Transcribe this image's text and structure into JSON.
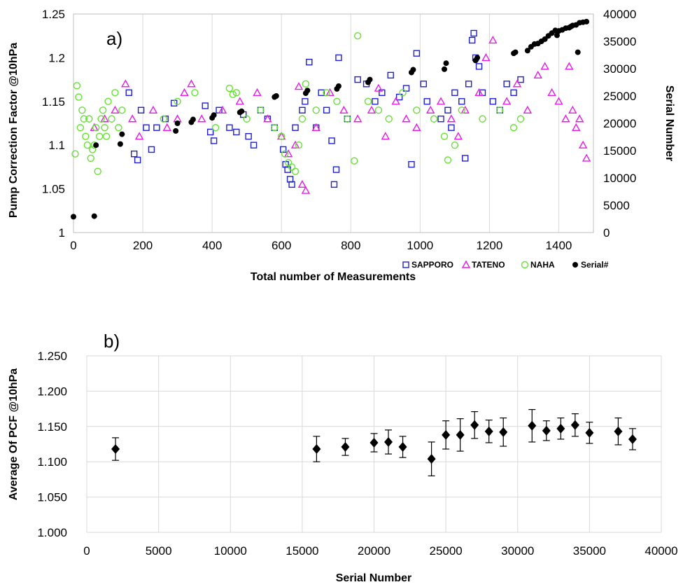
{
  "chart_data": [
    {
      "type": "scatter",
      "panel_label": "a)",
      "xlabel": "Total number of Measurements",
      "ylabel": "Pump Correction Factor @10hPa",
      "y2label": "Serial Number",
      "xlim": [
        0,
        1500
      ],
      "ylim": [
        1.0,
        1.25
      ],
      "y2lim": [
        0,
        40000
      ],
      "x_ticks": [
        0,
        200,
        400,
        600,
        800,
        1000,
        1200,
        1400
      ],
      "y_ticks": [
        "1",
        "1.05",
        "1.1",
        "1.15",
        "1.2",
        "1.25"
      ],
      "y_tick_values": [
        1.0,
        1.05,
        1.1,
        1.15,
        1.2,
        1.25
      ],
      "y2_ticks": [
        0,
        5000,
        10000,
        15000,
        20000,
        25000,
        30000,
        35000,
        40000
      ],
      "grid": "vertical",
      "legend_position": "bottom-right",
      "colors": {
        "SAPPORO": "#1f1fd6",
        "TATENO": "#e619e6",
        "NAHA": "#66e033",
        "Serial#": "#000000"
      },
      "series": [
        {
          "name": "SAPPORO",
          "marker": "square",
          "axis": "left",
          "x": [
            160,
            175,
            185,
            195,
            210,
            225,
            240,
            265,
            290,
            380,
            395,
            405,
            420,
            450,
            470,
            490,
            505,
            520,
            540,
            560,
            580,
            605,
            612,
            618,
            625,
            630,
            640,
            660,
            668,
            680,
            700,
            715,
            730,
            745,
            752,
            758,
            765,
            790,
            820,
            845,
            870,
            890,
            915,
            940,
            960,
            975,
            990,
            1010,
            1020,
            1060,
            1080,
            1090,
            1100,
            1120,
            1130,
            1140,
            1150,
            1155,
            1160,
            1170,
            1180,
            1210,
            1230,
            1250,
            1270,
            1290
          ],
          "y": [
            1.16,
            1.09,
            1.083,
            1.14,
            1.12,
            1.095,
            1.12,
            1.13,
            1.148,
            1.145,
            1.115,
            1.105,
            1.14,
            1.12,
            1.115,
            1.135,
            1.11,
            1.1,
            1.14,
            1.13,
            1.12,
            1.095,
            1.078,
            1.072,
            1.061,
            1.055,
            1.12,
            1.14,
            1.15,
            1.195,
            1.12,
            1.16,
            1.14,
            1.105,
            1.055,
            1.072,
            1.2,
            1.13,
            1.175,
            1.17,
            1.15,
            1.16,
            1.18,
            1.155,
            1.165,
            1.078,
            1.205,
            1.17,
            1.15,
            1.13,
            1.14,
            1.12,
            1.16,
            1.15,
            1.085,
            1.17,
            1.22,
            1.228,
            1.2,
            1.19,
            1.16,
            1.15,
            1.14,
            1.17,
            1.16,
            1.175
          ]
        },
        {
          "name": "TATENO",
          "marker": "triangle",
          "axis": "left",
          "x": [
            60,
            90,
            120,
            150,
            170,
            190,
            230,
            270,
            300,
            320,
            340,
            370,
            430,
            480,
            530,
            560,
            600,
            620,
            640,
            650,
            660,
            670,
            700,
            740,
            780,
            820,
            860,
            880,
            900,
            930,
            960,
            990,
            1030,
            1060,
            1090,
            1110,
            1130,
            1170,
            1190,
            1210,
            1250,
            1280,
            1310,
            1340,
            1360,
            1380,
            1400,
            1420,
            1430,
            1440,
            1450,
            1460,
            1470,
            1480
          ],
          "y": [
            1.12,
            1.13,
            1.14,
            1.17,
            1.13,
            1.11,
            1.14,
            1.12,
            1.13,
            1.16,
            1.17,
            1.13,
            1.14,
            1.15,
            1.16,
            1.13,
            1.11,
            1.09,
            1.1,
            1.167,
            1.055,
            1.048,
            1.12,
            1.16,
            1.14,
            1.13,
            1.14,
            1.165,
            1.11,
            1.15,
            1.13,
            1.12,
            1.14,
            1.15,
            1.13,
            1.11,
            1.14,
            1.16,
            1.2,
            1.22,
            1.15,
            1.17,
            1.14,
            1.18,
            1.19,
            1.16,
            1.15,
            1.13,
            1.19,
            1.14,
            1.12,
            1.13,
            1.1,
            1.085
          ]
        },
        {
          "name": "NAHA",
          "marker": "circle",
          "axis": "left",
          "x": [
            5,
            10,
            15,
            20,
            25,
            30,
            35,
            40,
            45,
            50,
            55,
            60,
            65,
            70,
            75,
            80,
            85,
            90,
            95,
            100,
            110,
            120,
            130,
            140,
            260,
            300,
            350,
            410,
            450,
            460,
            470,
            500,
            540,
            580,
            600,
            610,
            620,
            630,
            640,
            650,
            660,
            670,
            700,
            730,
            760,
            790,
            810,
            820,
            850,
            880,
            910,
            950,
            990,
            1040,
            1070,
            1080,
            1100,
            1120,
            1180,
            1230,
            1270,
            1290
          ],
          "y": [
            1.09,
            1.168,
            1.155,
            1.12,
            1.14,
            1.13,
            1.11,
            1.1,
            1.13,
            1.085,
            1.095,
            1.1,
            1.12,
            1.07,
            1.11,
            1.13,
            1.14,
            1.12,
            1.11,
            1.15,
            1.13,
            1.16,
            1.12,
            1.14,
            1.13,
            1.15,
            1.16,
            1.12,
            1.165,
            1.158,
            1.16,
            1.13,
            1.14,
            1.12,
            1.11,
            1.09,
            1.08,
            1.075,
            1.07,
            1.1,
            1.13,
            1.17,
            1.14,
            1.16,
            1.15,
            1.13,
            1.082,
            1.225,
            1.15,
            1.14,
            1.13,
            1.16,
            1.14,
            1.13,
            1.11,
            1.083,
            1.1,
            1.14,
            1.13,
            1.14,
            1.12,
            1.13
          ]
        },
        {
          "name": "Serial#",
          "marker": "dot",
          "axis": "right",
          "x": [
            0,
            60,
            65,
            135,
            140,
            295,
            300,
            340,
            345,
            400,
            405,
            480,
            485,
            580,
            585,
            670,
            675,
            760,
            765,
            850,
            855,
            975,
            980,
            1070,
            1075,
            1160,
            1165,
            1270,
            1275,
            1310,
            1320,
            1330,
            1340,
            1350,
            1360,
            1370,
            1380,
            1390,
            1395,
            1400,
            1410,
            1420,
            1430,
            1435,
            1440,
            1450,
            1455,
            1460,
            1470,
            1480
          ],
          "y": [
            2900,
            3000,
            16000,
            16200,
            18000,
            18600,
            20000,
            20200,
            20700,
            21000,
            21500,
            22000,
            22200,
            24800,
            25000,
            25500,
            26000,
            26300,
            26800,
            27500,
            28000,
            29300,
            29800,
            29900,
            31000,
            31500,
            32000,
            32800,
            33000,
            33300,
            34000,
            34500,
            34600,
            35000,
            35400,
            36000,
            36500,
            37000,
            36100,
            36900,
            37100,
            37400,
            37500,
            37700,
            37900,
            38000,
            33000,
            38400,
            38500,
            38600
          ]
        }
      ]
    },
    {
      "type": "scatter",
      "panel_label": "b)",
      "xlabel": "Serial Number",
      "ylabel": "Average Of PCF @10hPa",
      "xlim": [
        0,
        40000
      ],
      "ylim": [
        1.0,
        1.25
      ],
      "x_ticks": [
        0,
        5000,
        10000,
        15000,
        20000,
        25000,
        30000,
        35000,
        40000
      ],
      "y_ticks": [
        "1.000",
        "1.050",
        "1.100",
        "1.150",
        "1.200",
        "1.250"
      ],
      "y_tick_values": [
        1.0,
        1.05,
        1.1,
        1.15,
        1.2,
        1.25
      ],
      "grid": "both",
      "marker": "diamond",
      "error_bars": true,
      "x": [
        2000,
        16000,
        18000,
        20000,
        21000,
        22000,
        24000,
        25000,
        26000,
        27000,
        28000,
        29000,
        31000,
        32000,
        33000,
        34000,
        35000,
        37000,
        38000
      ],
      "y": [
        1.118,
        1.118,
        1.121,
        1.127,
        1.128,
        1.121,
        1.104,
        1.138,
        1.138,
        1.152,
        1.143,
        1.142,
        1.151,
        1.144,
        1.147,
        1.152,
        1.141,
        1.143,
        1.132
      ],
      "err": [
        0.016,
        0.018,
        0.012,
        0.013,
        0.017,
        0.015,
        0.024,
        0.02,
        0.023,
        0.019,
        0.016,
        0.02,
        0.023,
        0.014,
        0.015,
        0.016,
        0.015,
        0.019,
        0.015
      ]
    }
  ]
}
